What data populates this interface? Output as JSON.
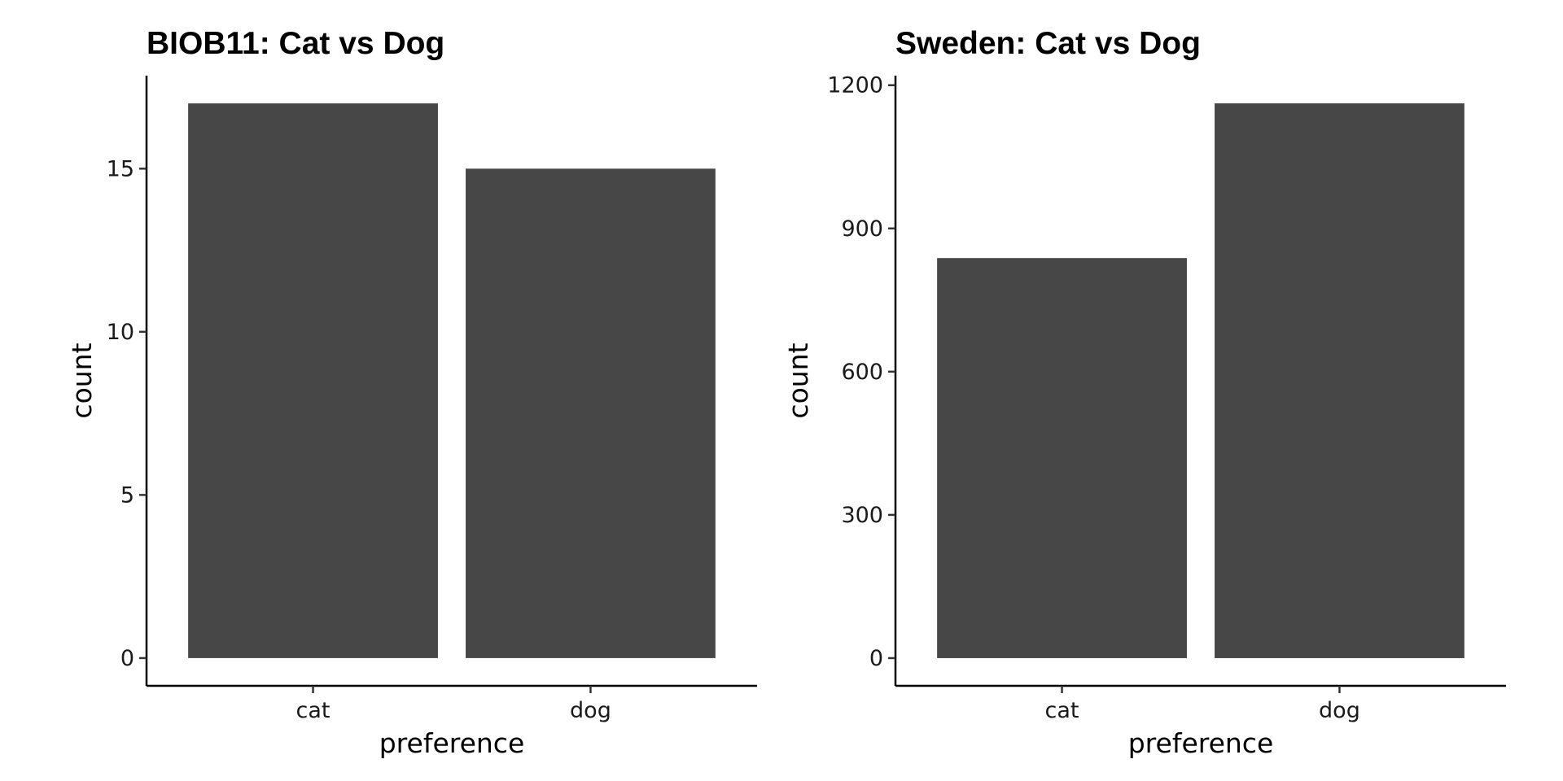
{
  "chart_data": [
    {
      "type": "bar",
      "title": "BIOB11: Cat vs Dog",
      "xlabel": "preference",
      "ylabel": "count",
      "categories": [
        "cat",
        "dog"
      ],
      "values": [
        17,
        15
      ],
      "ylim": [
        -0.85,
        17.85
      ],
      "yticks": [
        0,
        5,
        10,
        15
      ],
      "ytick_labels": [
        "0",
        "5",
        "10",
        "15"
      ],
      "bar_color": "#474747",
      "grid": false,
      "legend": "none"
    },
    {
      "type": "bar",
      "title": "Sweden: Cat vs Dog",
      "xlabel": "preference",
      "ylabel": "count",
      "categories": [
        "cat",
        "dog"
      ],
      "values": [
        838,
        1162
      ],
      "ylim": [
        -58,
        1220
      ],
      "yticks": [
        0,
        300,
        600,
        900,
        1200
      ],
      "ytick_labels": [
        "0",
        "300",
        "600",
        "900",
        "1200"
      ],
      "bar_color": "#474747",
      "grid": false,
      "legend": "none"
    }
  ]
}
